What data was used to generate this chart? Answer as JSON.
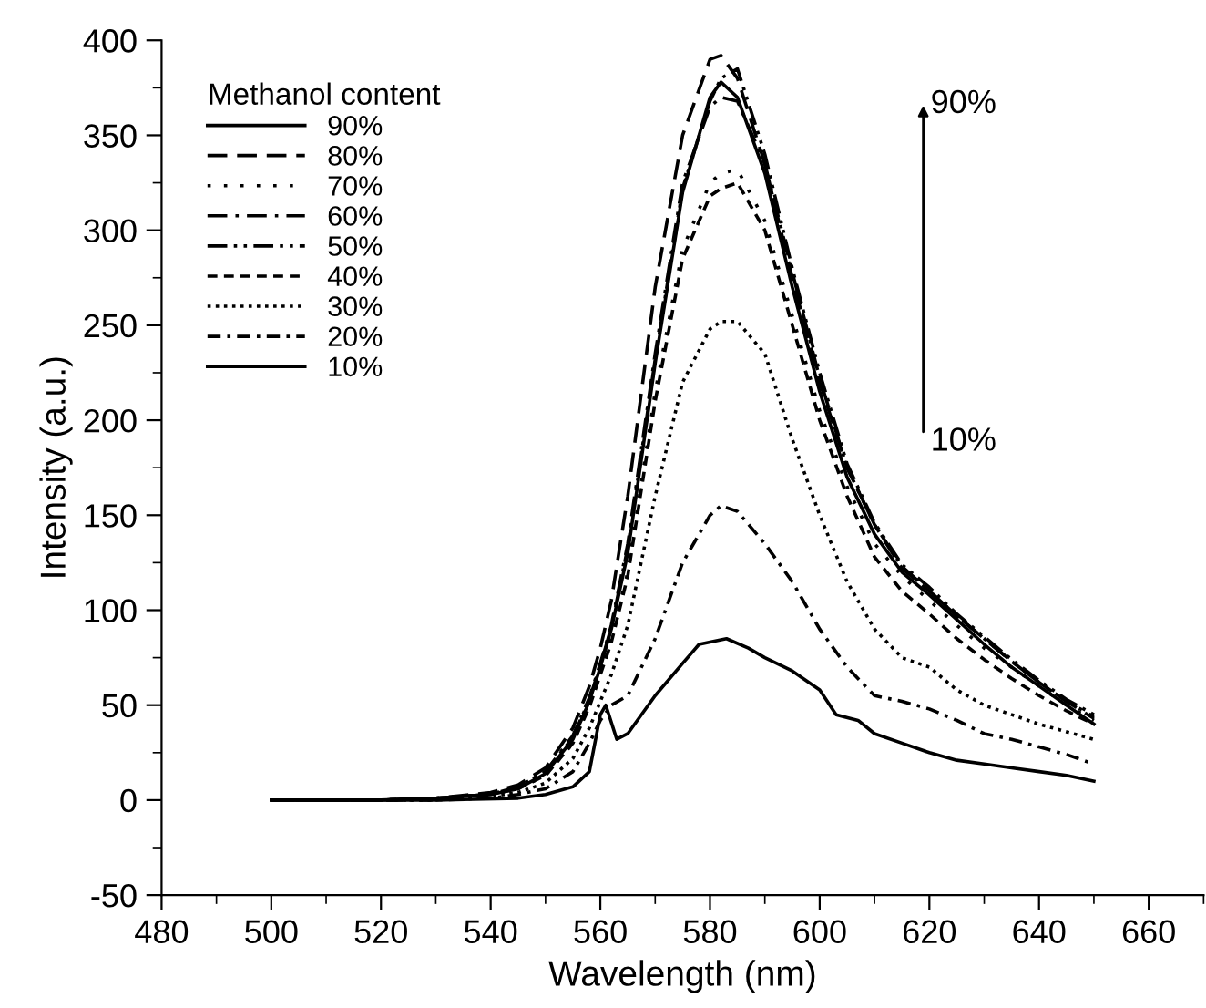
{
  "chart_data": {
    "type": "line",
    "xlabel": "Wavelength (nm)",
    "ylabel": "Intensity (a.u.)",
    "legend_title": "Methanol content",
    "xlim": [
      480,
      670
    ],
    "xticks": [
      480,
      500,
      520,
      540,
      560,
      580,
      600,
      620,
      640,
      660
    ],
    "ylim": [
      -50,
      400
    ],
    "yticks": [
      -50,
      0,
      50,
      100,
      150,
      200,
      250,
      300,
      350,
      400
    ],
    "grid": false,
    "legend": "top left",
    "marker": "none",
    "annotations": [
      "90%",
      "10%"
    ],
    "x": [
      500,
      520,
      530,
      540,
      545,
      550,
      555,
      558,
      560,
      562,
      565,
      570,
      575,
      580,
      582,
      585,
      590,
      595,
      600,
      605,
      610,
      615,
      620,
      625,
      630,
      635,
      640,
      645,
      650
    ],
    "series": [
      {
        "name": "90%",
        "color": "#000000",
        "line_style": "solid",
        "values": [
          0,
          0,
          1,
          3,
          6,
          14,
          32,
          52,
          70,
          90,
          130,
          230,
          320,
          370,
          378,
          370,
          330,
          270,
          215,
          170,
          140,
          120,
          108,
          95,
          82,
          70,
          60,
          50,
          40
        ]
      },
      {
        "name": "80%",
        "color": "#000000",
        "line_style": "dashed",
        "values": [
          0,
          0,
          1,
          4,
          8,
          17,
          38,
          60,
          80,
          105,
          160,
          270,
          350,
          390,
          392,
          380,
          335,
          275,
          220,
          175,
          145,
          122,
          110,
          97,
          85,
          73,
          62,
          52,
          43
        ]
      },
      {
        "name": "70%",
        "color": "#000000",
        "line_style": "dotted_sparse",
        "values": [
          0,
          0,
          1,
          3,
          6,
          13,
          30,
          50,
          68,
          85,
          120,
          215,
          290,
          325,
          330,
          332,
          305,
          255,
          205,
          165,
          135,
          118,
          105,
          92,
          80,
          70,
          60,
          50,
          42
        ]
      },
      {
        "name": "60%",
        "color": "#000000",
        "line_style": "dashdot",
        "values": [
          0,
          0,
          1,
          3,
          7,
          15,
          34,
          54,
          72,
          92,
          135,
          235,
          325,
          365,
          370,
          368,
          335,
          278,
          222,
          175,
          145,
          123,
          110,
          97,
          85,
          73,
          62,
          52,
          44
        ]
      },
      {
        "name": "50%",
        "color": "#000000",
        "line_style": "dashdotdot",
        "values": [
          0,
          0,
          1,
          3,
          7,
          15,
          33,
          53,
          71,
          91,
          133,
          232,
          322,
          368,
          380,
          385,
          340,
          280,
          225,
          177,
          146,
          124,
          112,
          98,
          86,
          74,
          63,
          53,
          45
        ]
      },
      {
        "name": "40%",
        "color": "#000000",
        "line_style": "dashed_short",
        "values": [
          0,
          0,
          1,
          3,
          6,
          13,
          30,
          49,
          66,
          83,
          118,
          210,
          285,
          318,
          322,
          325,
          300,
          250,
          200,
          160,
          128,
          110,
          98,
          85,
          74,
          64,
          55,
          47,
          40
        ]
      },
      {
        "name": "30%",
        "color": "#000000",
        "line_style": "dotted",
        "values": [
          0,
          0,
          0,
          2,
          4,
          9,
          22,
          38,
          52,
          66,
          92,
          160,
          220,
          248,
          252,
          252,
          235,
          190,
          150,
          115,
          90,
          75,
          70,
          58,
          50,
          45,
          40,
          36,
          32
        ]
      },
      {
        "name": "20%",
        "color": "#000000",
        "line_style": "dashdot_short",
        "values": [
          0,
          0,
          0,
          1,
          3,
          6,
          15,
          30,
          42,
          50,
          55,
          85,
          125,
          150,
          155,
          152,
          135,
          115,
          90,
          70,
          55,
          52,
          48,
          42,
          35,
          32,
          28,
          24,
          19
        ]
      },
      {
        "name": "10%",
        "color": "#000000",
        "line_style": "solid",
        "x": [
          500,
          530,
          545,
          550,
          555,
          558,
          560,
          561,
          563,
          565,
          570,
          575,
          578,
          583,
          587,
          590,
          595,
          600,
          603,
          607,
          610,
          615,
          620,
          625,
          630,
          635,
          640,
          645,
          650
        ],
        "values": [
          0,
          0,
          1,
          3,
          7,
          15,
          45,
          50,
          32,
          35,
          55,
          72,
          82,
          85,
          80,
          75,
          68,
          58,
          45,
          42,
          35,
          30,
          25,
          21,
          19,
          17,
          15,
          13,
          10
        ]
      }
    ]
  }
}
